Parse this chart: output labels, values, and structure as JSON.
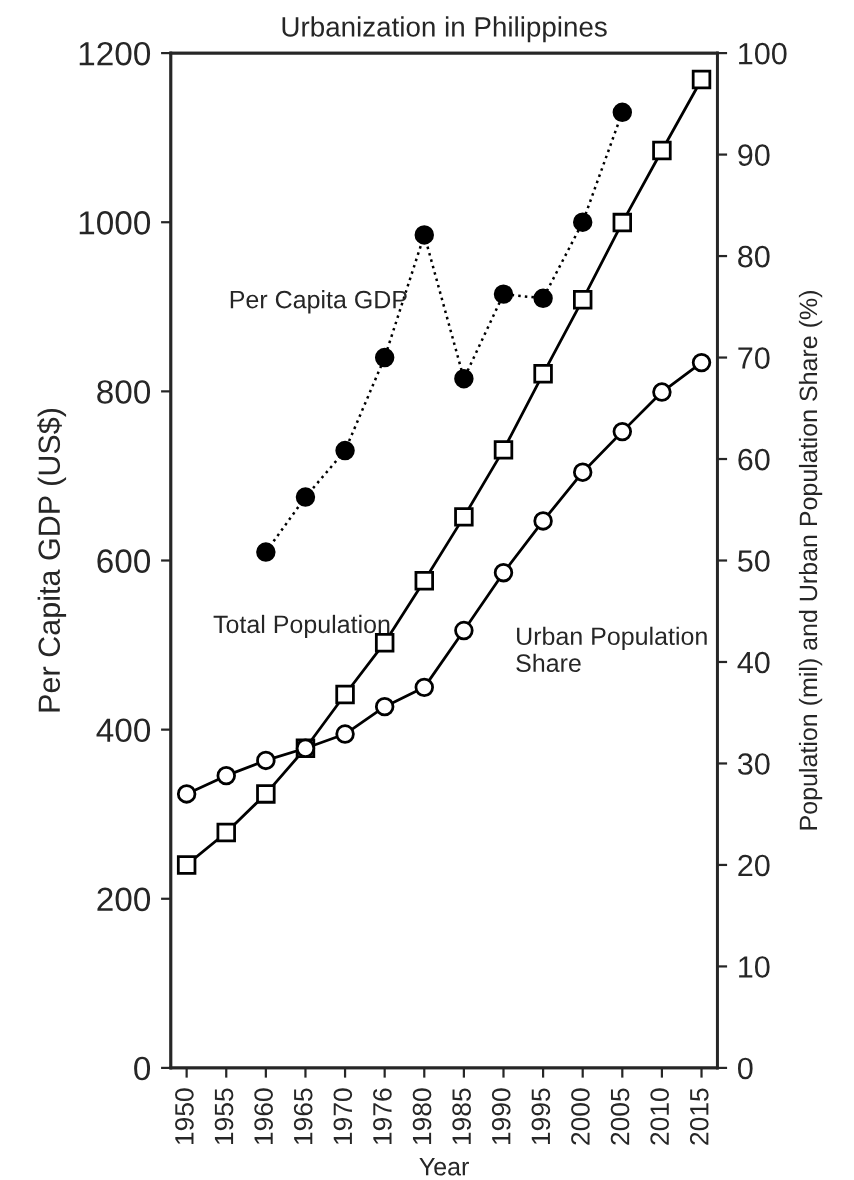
{
  "chart_data": {
    "type": "line",
    "title": "Urbanization in Philippines",
    "xlabel": "Year",
    "ylabel": "Per Capita GDP (US$)",
    "y2label": "Population (mil) and Urban Population Share (%)",
    "categories": [
      "1950",
      "1955",
      "1960",
      "1965",
      "1970",
      "1976",
      "1980",
      "1985",
      "1990",
      "1995",
      "2000",
      "2005",
      "2010",
      "2015"
    ],
    "series": [
      {
        "color": "#000000",
        "marker": "circle",
        "line_style": "dotted",
        "values": [
          null,
          null,
          610,
          675,
          730,
          840,
          985,
          815,
          915,
          910,
          1000,
          1130,
          null,
          null
        ]
      },
      {
        "color": "#000000",
        "marker": "square",
        "line_style": "solid",
        "axis": "y2",
        "values": [
          20,
          23.2,
          27,
          31.5,
          36.8,
          41.9,
          48,
          54.3,
          60.9,
          68.4,
          75.7,
          83.3,
          90.4,
          97.4
        ]
      },
      {
        "color": "#000000",
        "marker": "circle",
        "line_style": "solid",
        "axis": "y2",
        "values": [
          27,
          28.8,
          30.3,
          31.5,
          32.9,
          35.6,
          37.5,
          43.1,
          48.8,
          53.9,
          58.7,
          62.7,
          66.6,
          69.5
        ]
      }
    ],
    "annotations": [
      "Per Capita GDP",
      "Total Population",
      "Urban Population\nShare"
    ],
    "ylim": [
      0,
      1200
    ],
    "yticks": [
      0,
      200,
      400,
      600,
      800,
      1000,
      1200
    ],
    "y2lim": [
      0,
      100
    ],
    "y2ticks": [
      0,
      10,
      20,
      30,
      40,
      50,
      60,
      70,
      80,
      90,
      100
    ],
    "grid": false,
    "legend": false
  }
}
